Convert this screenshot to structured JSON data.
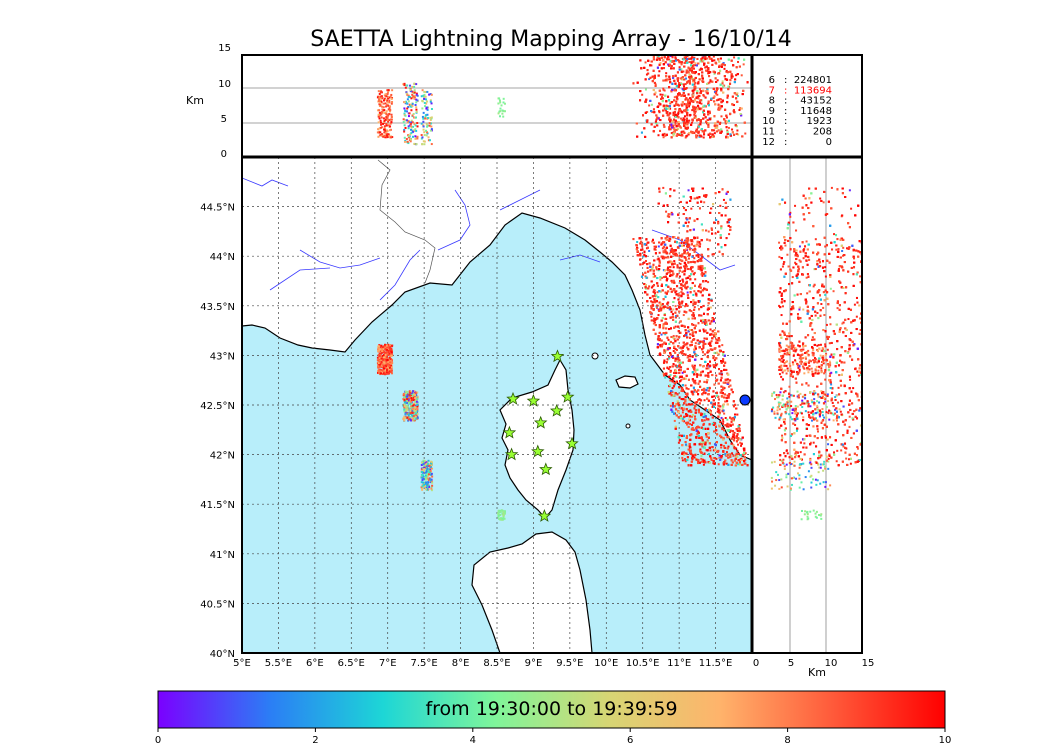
{
  "title": "SAETTA Lightning Mapping Array - 16/10/14",
  "colorbar": {
    "label": "from 19:30:00 to 19:39:59",
    "ticks": [
      "0",
      "2",
      "4",
      "6",
      "8",
      "10"
    ],
    "colors": [
      "#7b00ff",
      "#2b7ef5",
      "#1dd6d6",
      "#7ff59a",
      "#d6d674",
      "#ffb36b",
      "#ff5a3a",
      "#ff0000"
    ]
  },
  "altitude_legend": {
    "rows": [
      {
        "alt": "6",
        "count": "224801"
      },
      {
        "alt": "7",
        "count": "113694",
        "highlight": true
      },
      {
        "alt": "8",
        "count": "43152"
      },
      {
        "alt": "9",
        "count": "11648"
      },
      {
        "alt": "10",
        "count": "1923"
      },
      {
        "alt": "11",
        "count": "208"
      },
      {
        "alt": "12",
        "count": "0"
      }
    ],
    "highlight_color": "#ff0000"
  },
  "top_panel": {
    "ylabel": "Km",
    "yticks": [
      "15",
      "10",
      "5",
      "0"
    ]
  },
  "right_panel": {
    "xlabel": "Km",
    "xticks": [
      "0",
      "5",
      "10",
      "15"
    ]
  },
  "map": {
    "lat_ticks": [
      "44.5°N",
      "44°N",
      "43.5°N",
      "43°N",
      "42.5°N",
      "42°N",
      "41.5°N",
      "41°N",
      "40.5°N",
      "40°N"
    ],
    "lon_ticks": [
      "5°E",
      "5.5°E",
      "6°E",
      "6.5°E",
      "7°E",
      "7.5°E",
      "8°E",
      "8.5°E",
      "9°E",
      "9.5°E",
      "10°E",
      "10.5°E",
      "11°E",
      "11.5°E"
    ],
    "sea_color": "#b8eefa",
    "coast_color": "#000000",
    "river_color": "#3a3aff",
    "station_color": "#99ff33"
  },
  "chart_data": {
    "type": "scatter",
    "title": "SAETTA Lightning Mapping Array - 16/10/14",
    "x_unit": "longitude (°E)",
    "y_unit": "latitude (°N)",
    "xlim": [
      5,
      12
    ],
    "ylim": [
      40,
      45
    ],
    "altitude_km_range": [
      0,
      15
    ],
    "color_scale": {
      "label": "from 19:30:00 to 19:39:59",
      "range": [
        0,
        10
      ]
    },
    "stations": [
      [
        8.72,
        42.56
      ],
      [
        9.0,
        42.54
      ],
      [
        9.33,
        42.99
      ],
      [
        9.47,
        42.58
      ],
      [
        9.32,
        42.44
      ],
      [
        9.1,
        42.32
      ],
      [
        8.67,
        42.22
      ],
      [
        8.7,
        42.0
      ],
      [
        9.06,
        42.03
      ],
      [
        9.53,
        42.11
      ],
      [
        9.17,
        41.85
      ],
      [
        9.15,
        41.38
      ]
    ],
    "clusters": [
      {
        "lon": [
          6.85,
          7.05
        ],
        "lat": [
          42.82,
          43.12
        ],
        "alt": [
          3,
          10
        ],
        "time": [
          7,
          10
        ]
      },
      {
        "lon": [
          7.2,
          7.4
        ],
        "lat": [
          42.35,
          42.65
        ],
        "alt": [
          2,
          11
        ],
        "time": [
          0,
          10
        ]
      },
      {
        "lon": [
          7.45,
          7.6
        ],
        "lat": [
          41.65,
          41.95
        ],
        "alt": [
          2,
          10
        ],
        "time": [
          0,
          9
        ]
      },
      {
        "lon": [
          8.5,
          8.6
        ],
        "lat": [
          41.35,
          41.45
        ],
        "alt": [
          6,
          9
        ],
        "time": [
          4,
          5
        ]
      },
      {
        "lon": [
          10.4,
          11.6
        ],
        "lat": [
          41.9,
          44.7
        ],
        "alt": [
          3,
          15
        ],
        "time": [
          0,
          10
        ]
      }
    ],
    "station_marker": "star"
  }
}
